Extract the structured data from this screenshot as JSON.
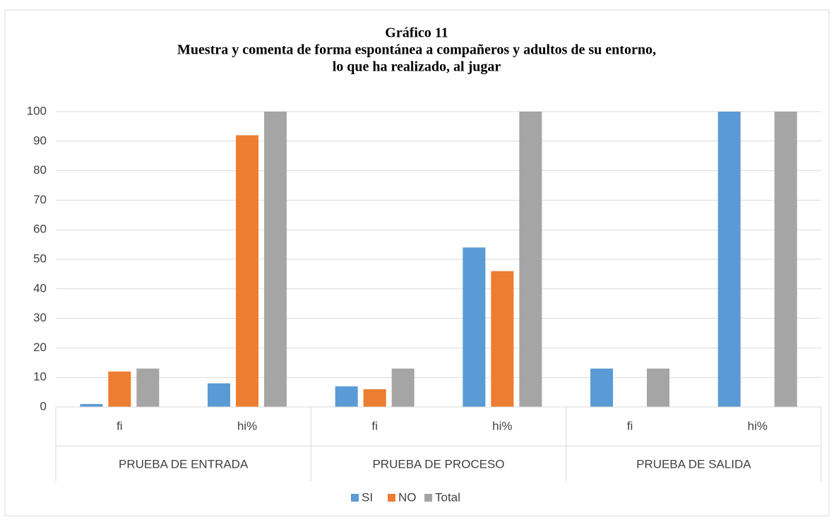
{
  "chart_data": {
    "type": "bar",
    "title": [
      "Gráfico 11",
      "Muestra y comenta de forma espontánea a compañeros y adultos de su entorno,",
      "lo que ha realizado, al jugar"
    ],
    "categories": [
      "fi",
      "hi%",
      "fi",
      "hi%",
      "fi",
      "hi%"
    ],
    "category_groups": [
      "PRUEBA DE ENTRADA",
      "PRUEBA DE PROCESO",
      "PRUEBA DE SALIDA"
    ],
    "series": [
      {
        "name": "SI",
        "color": "#5b9bd5",
        "values": [
          1,
          8,
          7,
          54,
          13,
          100
        ]
      },
      {
        "name": "NO",
        "color": "#ed7d31",
        "values": [
          12,
          92,
          6,
          46,
          0,
          0
        ]
      },
      {
        "name": "Total",
        "color": "#a5a5a5",
        "values": [
          13,
          100,
          13,
          100,
          13,
          100
        ]
      }
    ],
    "ylim": [
      0,
      100
    ],
    "yticks": [
      0,
      10,
      20,
      30,
      40,
      50,
      60,
      70,
      80,
      90,
      100
    ],
    "grid": true,
    "legend": "bottom"
  }
}
